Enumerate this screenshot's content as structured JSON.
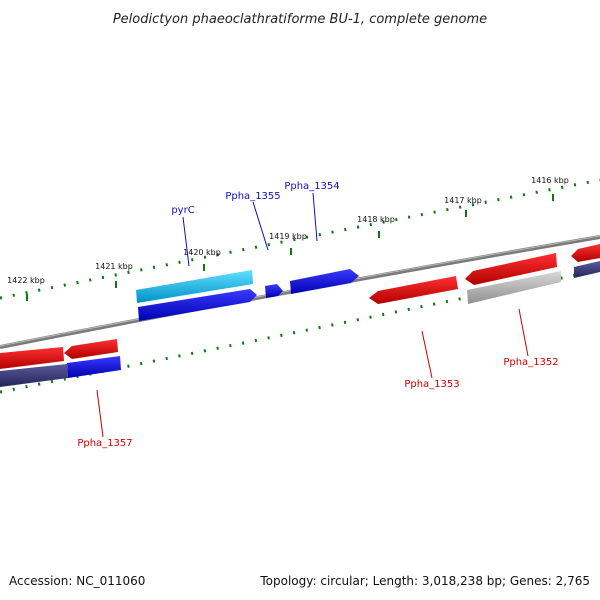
{
  "title": "Pelodictyon phaeoclathratiforme BU-1, complete genome",
  "footer": {
    "accession": "Accession: NC_011060",
    "summary": "Topology: circular; Length: 3,018,238 bp; Genes: 2,765"
  },
  "ticks": [
    {
      "kbp": 1416,
      "label": "1416 kbp"
    },
    {
      "kbp": 1417,
      "label": "1417 kbp"
    },
    {
      "kbp": 1418,
      "label": "1418 kbp"
    },
    {
      "kbp": 1419,
      "label": "1419 kbp"
    },
    {
      "kbp": 1420,
      "label": "1420 kbp"
    },
    {
      "kbp": 1421,
      "label": "1421 kbp"
    },
    {
      "kbp": 1422,
      "label": "1422 kbp"
    }
  ],
  "gene_labels": [
    {
      "id": "pyrC",
      "label": "pyrC",
      "color": "#1010c0"
    },
    {
      "id": "Ppha_1355",
      "label": "Ppha_1355",
      "color": "#1010c0"
    },
    {
      "id": "Ppha_1354",
      "label": "Ppha_1354",
      "color": "#1010c0"
    },
    {
      "id": "Ppha_1353",
      "label": "Ppha_1353",
      "color": "#cc0000"
    },
    {
      "id": "Ppha_1352",
      "label": "Ppha_1352",
      "color": "#cc0000"
    },
    {
      "id": "Ppha_1357",
      "label": "Ppha_1357",
      "color": "#cc0000"
    }
  ],
  "colors": {
    "backbone": "#808080",
    "tick": "#0a7a0a",
    "red": "#e00000",
    "blue": "#1010e0",
    "cyan": "#20c8f0",
    "navy": "#303070",
    "grey": "#b0b0b0"
  }
}
